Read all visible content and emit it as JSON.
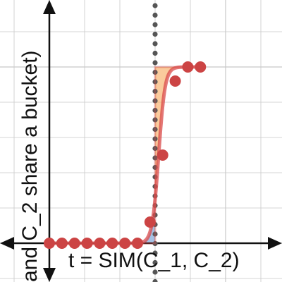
{
  "chart_data": {
    "type": "line",
    "xlabel": "t = SIM(C_1, C_2)",
    "ylabel": "and C_2 share a bucket)",
    "xlim": [
      -0.35,
      1.0
    ],
    "ylim": [
      -0.05,
      1.0
    ],
    "grid": true,
    "threshold_x": 0.6,
    "sample_points": {
      "x": [
        0.0,
        0.0714,
        0.1429,
        0.2143,
        0.2857,
        0.3571,
        0.4286,
        0.5,
        0.5714,
        0.6429,
        0.7143,
        0.7857,
        0.8571
      ],
      "y": [
        0.0,
        0.0,
        0.0,
        0.0,
        0.0,
        0.0,
        0.0,
        0.0,
        0.12,
        0.5,
        0.92,
        1.0,
        1.0
      ]
    },
    "series": [
      {
        "name": "",
        "type": "step",
        "x": [
          0.0,
          0.6,
          0.6,
          0.86
        ],
        "y": [
          0.0,
          0.0,
          1.0,
          1.0
        ]
      },
      {
        "name": "",
        "type": "sigmoid",
        "midpoint": 0.62,
        "steepness": 55
      }
    ],
    "colors": {
      "grid": "#c8c8c8",
      "axis": "#111111",
      "curve": "#d94a4a",
      "points": "#cc4444",
      "threshold": "#555555",
      "fill_below": "#5b8fd0",
      "fill_above": "#f5a04a"
    }
  }
}
